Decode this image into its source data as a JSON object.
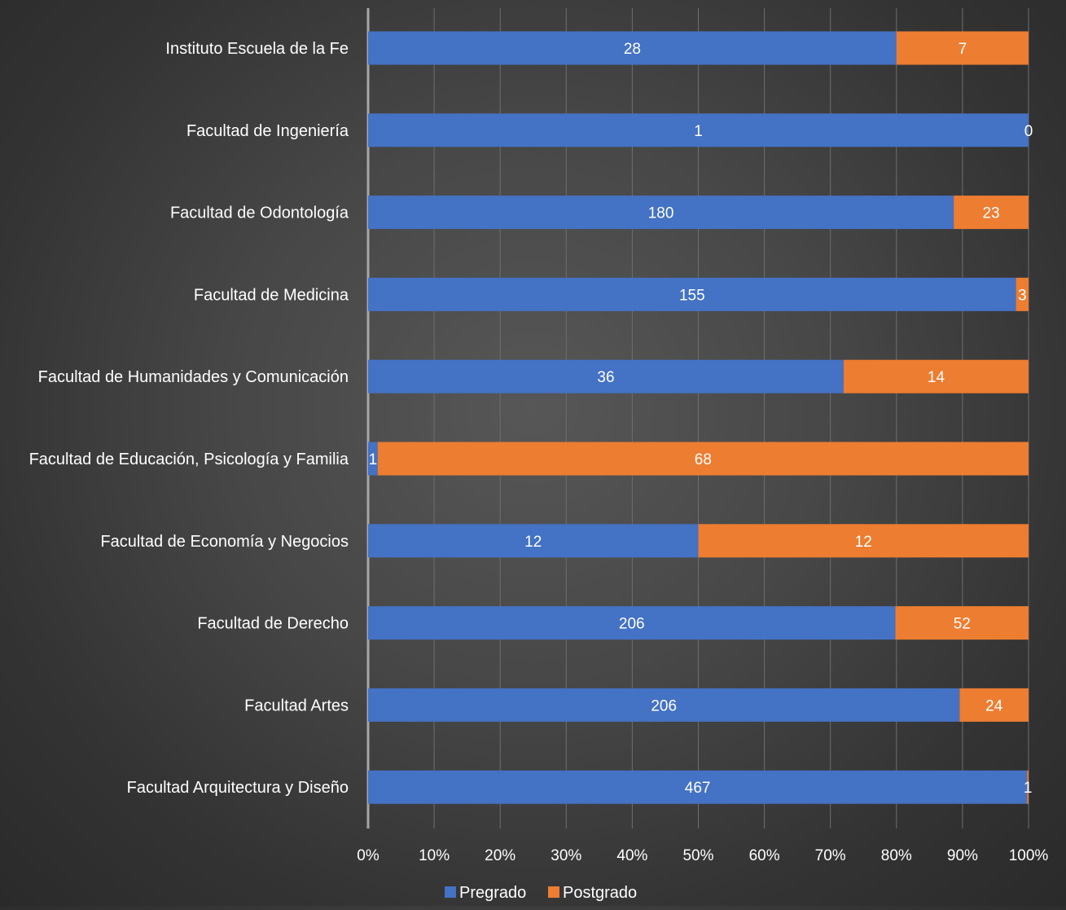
{
  "colors": {
    "pregrado": "#4472C4",
    "postgrado": "#ED7D31",
    "text": "#FFFFFF",
    "gridline": "#6E6E6E",
    "axis": "#A6A6A6"
  },
  "chart_data": {
    "type": "bar",
    "orientation": "horizontal",
    "stacking": "percent",
    "categories": [
      "Instituto Escuela de la Fe",
      "Facultad de Ingeniería",
      "Facultad de Odontología",
      "Facultad de Medicina",
      "Facultad de Humanidades y Comunicación",
      "Facultad de Educación, Psicología y Familia",
      "Facultad de Economía y Negocios",
      "Facultad de Derecho",
      "Facultad Artes",
      "Facultad Arquitectura y Diseño"
    ],
    "series": [
      {
        "name": "Pregrado",
        "values": [
          28,
          1,
          180,
          155,
          36,
          1,
          12,
          206,
          206,
          467
        ]
      },
      {
        "name": "Postgrado",
        "values": [
          7,
          0,
          23,
          3,
          14,
          68,
          12,
          52,
          24,
          1
        ]
      }
    ],
    "x_ticks": [
      "0%",
      "10%",
      "20%",
      "30%",
      "40%",
      "50%",
      "60%",
      "70%",
      "80%",
      "90%",
      "100%"
    ],
    "xlim": [
      0,
      100
    ],
    "grid": true,
    "legend_position": "bottom",
    "data_labels": true
  }
}
